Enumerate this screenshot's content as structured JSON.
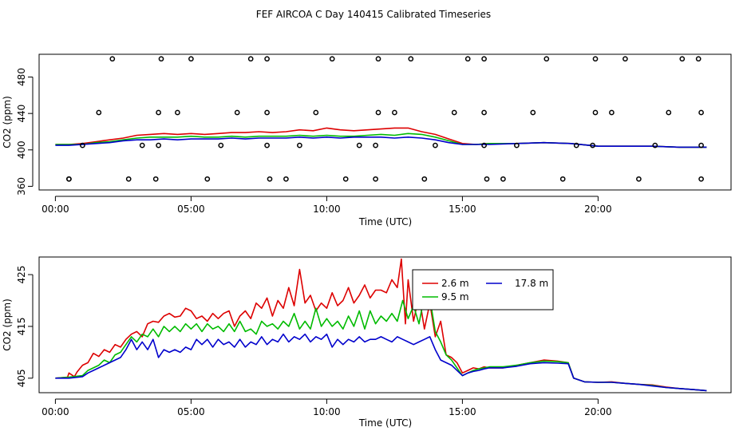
{
  "title": "FEF AIRCOA C  Day 140415  Calibrated Timeseries",
  "colors": {
    "s1": "#dd0000",
    "s2": "#00bb00",
    "s3": "#0000cc",
    "axis": "#000000",
    "background": "#ffffff"
  },
  "chart_data": [
    {
      "type": "line",
      "xlabel": "Time (UTC)",
      "ylabel": "CO2 (ppm)",
      "x_range_hours": [
        -0.6,
        24.9
      ],
      "ylim": [
        356,
        505
      ],
      "xticks": [
        {
          "v": 0,
          "label": "00:00"
        },
        {
          "v": 5,
          "label": "05:00"
        },
        {
          "v": 10,
          "label": "10:00"
        },
        {
          "v": 15,
          "label": "15:00"
        },
        {
          "v": 20,
          "label": "20:00"
        }
      ],
      "yticks": [
        {
          "v": 360,
          "label": "360"
        },
        {
          "v": 400,
          "label": "400"
        },
        {
          "v": 440,
          "label": "440"
        },
        {
          "v": 480,
          "label": "480"
        }
      ],
      "series": [
        {
          "color_key": "s1",
          "x": [
            0,
            0.5,
            1,
            1.5,
            2,
            2.5,
            3,
            3.5,
            4,
            4.5,
            5,
            5.5,
            6,
            6.5,
            7,
            7.5,
            8,
            8.5,
            9,
            9.5,
            10,
            10.5,
            11,
            11.5,
            12,
            12.5,
            13,
            13.5,
            14,
            14.5,
            15,
            15.5,
            16,
            17,
            18,
            19,
            20,
            21,
            22,
            23,
            24
          ],
          "y": [
            406,
            406,
            407,
            409,
            411,
            413,
            416,
            417,
            418,
            417,
            418,
            417,
            418,
            419,
            419,
            420,
            419,
            420,
            422,
            421,
            424,
            422,
            421,
            422,
            423,
            424,
            424,
            420,
            417,
            412,
            407,
            406,
            407,
            407,
            408,
            407,
            404,
            404,
            404,
            403,
            403
          ]
        },
        {
          "color_key": "s2",
          "x": [
            0,
            0.5,
            1,
            1.5,
            2,
            2.5,
            3,
            3.5,
            4,
            4.5,
            5,
            5.5,
            6,
            6.5,
            7,
            7.5,
            8,
            8.5,
            9,
            9.5,
            10,
            10.5,
            11,
            11.5,
            12,
            12.5,
            13,
            13.5,
            14,
            14.5,
            15,
            15.5,
            16,
            17,
            18,
            19,
            20,
            21,
            22,
            23,
            24
          ],
          "y": [
            406,
            406,
            406,
            408,
            409,
            411,
            413,
            414,
            414,
            414,
            415,
            414,
            414,
            415,
            414,
            415,
            415,
            415,
            416,
            415,
            416,
            415,
            415,
            416,
            417,
            416,
            418,
            417,
            414,
            410,
            406,
            406,
            407,
            407,
            408,
            407,
            404,
            404,
            404,
            403,
            403
          ]
        },
        {
          "color_key": "s3",
          "x": [
            0,
            0.5,
            1,
            1.5,
            2,
            2.5,
            3,
            3.5,
            4,
            4.5,
            5,
            5.5,
            6,
            6.5,
            7,
            7.5,
            8,
            8.5,
            9,
            9.5,
            10,
            10.5,
            11,
            11.5,
            12,
            12.5,
            13,
            13.5,
            14,
            14.5,
            15,
            15.5,
            16,
            17,
            18,
            19,
            20,
            21,
            22,
            23,
            24
          ],
          "y": [
            405,
            405,
            406,
            407,
            408,
            410,
            411,
            411,
            412,
            411,
            412,
            412,
            412,
            413,
            412,
            413,
            413,
            413,
            414,
            413,
            414,
            413,
            414,
            414,
            414,
            413,
            414,
            413,
            411,
            408,
            406,
            406,
            406,
            407,
            408,
            407,
            404,
            404,
            404,
            403,
            403
          ]
        }
      ],
      "points": {
        "x": [
          0.5,
          2.1,
          3.9,
          5.0,
          7.2,
          7.8,
          10.2,
          11.9,
          13.1,
          15.2,
          15.8,
          18.1,
          19.9,
          21.0,
          23.1,
          23.7,
          1.6,
          3.8,
          4.5,
          6.7,
          7.8,
          9.6,
          11.9,
          12.5,
          14.7,
          15.8,
          17.6,
          19.9,
          20.5,
          22.6,
          23.8,
          1.0,
          3.2,
          3.8,
          6.1,
          7.8,
          9.0,
          11.2,
          11.8,
          14.0,
          15.8,
          17.0,
          19.2,
          19.8,
          22.1,
          23.8,
          0.5,
          2.7,
          3.7,
          5.6,
          7.9,
          8.5,
          10.7,
          11.8,
          13.6,
          15.9,
          16.5,
          18.7,
          21.5,
          23.8
        ],
        "y": [
          368,
          500,
          500,
          500,
          500,
          500,
          500,
          500,
          500,
          500,
          500,
          500,
          500,
          500,
          500,
          500,
          441,
          441,
          441,
          441,
          441,
          441,
          441,
          441,
          441,
          441,
          441,
          441,
          441,
          441,
          441,
          405,
          405,
          405,
          405,
          405,
          405,
          405,
          405,
          405,
          405,
          405,
          405,
          405,
          405,
          405,
          368,
          368,
          368,
          368,
          368,
          368,
          368,
          368,
          368,
          368,
          368,
          368,
          368,
          368
        ]
      }
    },
    {
      "type": "line",
      "xlabel": "Time (UTC)",
      "ylabel": "CO2 (ppm)",
      "x_range_hours": [
        -0.6,
        24.9
      ],
      "ylim": [
        402.2,
        428.4
      ],
      "xticks": [
        {
          "v": 0,
          "label": "00:00"
        },
        {
          "v": 5,
          "label": "05:00"
        },
        {
          "v": 10,
          "label": "10:00"
        },
        {
          "v": 15,
          "label": "15:00"
        },
        {
          "v": 20,
          "label": "20:00"
        }
      ],
      "yticks": [
        {
          "v": 405,
          "label": "405"
        },
        {
          "v": 415,
          "label": "415"
        },
        {
          "v": 425,
          "label": "425"
        }
      ],
      "legend": {
        "placement": "top-right",
        "entries": [
          {
            "label": "2.6 m",
            "color_key": "s1"
          },
          {
            "label": "17.8 m",
            "color_key": "s3"
          },
          {
            "label": "9.5 m",
            "color_key": "s2"
          }
        ]
      },
      "series": [
        {
          "name": "2.6 m",
          "color_key": "s1",
          "x": [
            0.0,
            0.45,
            0.5,
            0.7,
            0.8,
            1.0,
            1.2,
            1.4,
            1.6,
            1.8,
            2.0,
            2.2,
            2.4,
            2.6,
            2.8,
            3.0,
            3.2,
            3.4,
            3.6,
            3.8,
            4.0,
            4.2,
            4.4,
            4.6,
            4.8,
            5.0,
            5.2,
            5.4,
            5.6,
            5.8,
            6.0,
            6.2,
            6.4,
            6.6,
            6.8,
            7.0,
            7.2,
            7.4,
            7.6,
            7.8,
            8.0,
            8.2,
            8.4,
            8.6,
            8.8,
            9.0,
            9.2,
            9.4,
            9.6,
            9.8,
            10.0,
            10.2,
            10.4,
            10.6,
            10.8,
            11.0,
            11.2,
            11.4,
            11.6,
            11.8,
            12.0,
            12.2,
            12.4,
            12.6,
            12.75,
            12.9,
            13.0,
            13.2,
            13.4,
            13.6,
            13.8,
            14.0,
            14.2,
            14.4,
            14.6,
            14.8,
            15.0,
            15.2,
            15.4,
            15.6,
            15.8,
            16.0,
            16.5,
            17.0,
            17.5,
            18.0,
            18.5,
            18.9,
            19.1,
            19.5,
            20.0,
            20.5,
            21.0,
            21.5,
            22.0,
            22.5,
            23.0,
            23.5,
            24.0
          ],
          "y": [
            405.0,
            405.2,
            406.0,
            405.3,
            406.2,
            407.5,
            408.0,
            409.8,
            409.2,
            410.5,
            410.0,
            411.5,
            411.0,
            412.5,
            413.5,
            414.0,
            413.0,
            415.5,
            416.0,
            415.8,
            417.0,
            417.5,
            416.8,
            417.0,
            418.5,
            418.0,
            416.5,
            417.0,
            416.0,
            417.5,
            416.5,
            417.5,
            418.0,
            415.0,
            417.0,
            418.0,
            416.5,
            419.5,
            418.5,
            420.5,
            417.0,
            420.0,
            418.5,
            422.5,
            419.0,
            426.0,
            419.5,
            421.0,
            418.0,
            419.5,
            418.5,
            421.5,
            419.0,
            420.0,
            422.5,
            419.5,
            421.0,
            423.0,
            420.5,
            422.0,
            422.0,
            421.5,
            424.0,
            422.5,
            428.0,
            415.5,
            424.0,
            416.0,
            421.0,
            414.5,
            419.5,
            413.0,
            416.0,
            409.5,
            409.0,
            408.0,
            406.0,
            406.5,
            407.0,
            406.8,
            407.2,
            407.0,
            407.0,
            407.5,
            408.0,
            408.5,
            408.3,
            408.0,
            405.0,
            404.3,
            404.2,
            404.3,
            404.0,
            403.8,
            403.7,
            403.3,
            403.0,
            402.8,
            402.6
          ]
        },
        {
          "name": "9.5 m",
          "color_key": "s2",
          "x": [
            0.0,
            0.5,
            1.0,
            1.2,
            1.4,
            1.6,
            1.8,
            2.0,
            2.2,
            2.4,
            2.6,
            2.8,
            3.0,
            3.2,
            3.4,
            3.6,
            3.8,
            4.0,
            4.2,
            4.4,
            4.6,
            4.8,
            5.0,
            5.2,
            5.4,
            5.6,
            5.8,
            6.0,
            6.2,
            6.4,
            6.6,
            6.8,
            7.0,
            7.2,
            7.4,
            7.6,
            7.8,
            8.0,
            8.2,
            8.4,
            8.6,
            8.8,
            9.0,
            9.2,
            9.4,
            9.6,
            9.8,
            10.0,
            10.2,
            10.4,
            10.6,
            10.8,
            11.0,
            11.2,
            11.4,
            11.6,
            11.8,
            12.0,
            12.2,
            12.4,
            12.6,
            12.8,
            13.0,
            13.2,
            13.4,
            13.6,
            13.8,
            14.0,
            14.2,
            14.4,
            14.6,
            14.8,
            15.0,
            15.2,
            15.4,
            15.6,
            15.8,
            16.0,
            16.5,
            17.0,
            17.5,
            18.0,
            18.5,
            18.9,
            19.1,
            19.5,
            20.0,
            20.5,
            21.0,
            21.5,
            22.0,
            22.5,
            23.0,
            23.5,
            24.0
          ],
          "y": [
            405.0,
            405.2,
            405.5,
            406.5,
            407.0,
            407.5,
            408.5,
            408.0,
            409.5,
            410.0,
            411.5,
            413.0,
            412.0,
            413.5,
            413.0,
            414.5,
            413.0,
            415.0,
            414.0,
            415.0,
            414.0,
            415.5,
            414.5,
            415.5,
            414.0,
            415.5,
            414.5,
            415.0,
            414.0,
            415.5,
            414.0,
            416.0,
            414.0,
            414.5,
            413.5,
            416.0,
            415.0,
            415.5,
            414.5,
            416.0,
            415.0,
            417.5,
            414.5,
            416.0,
            414.5,
            418.5,
            415.0,
            416.5,
            415.0,
            416.0,
            414.5,
            417.0,
            415.0,
            418.0,
            414.5,
            418.0,
            415.5,
            417.0,
            416.0,
            417.5,
            416.0,
            420.0,
            416.5,
            419.0,
            415.5,
            421.0,
            420.5,
            414.0,
            412.0,
            409.5,
            408.5,
            407.0,
            405.5,
            406.0,
            406.5,
            406.8,
            407.0,
            407.2,
            407.2,
            407.5,
            408.0,
            408.3,
            408.2,
            408.0,
            405.0,
            404.3,
            404.2,
            404.2,
            404.0,
            403.8,
            403.6,
            403.2,
            403.0,
            402.8,
            402.6
          ]
        },
        {
          "name": "17.8 m",
          "color_key": "s3",
          "x": [
            0.0,
            0.5,
            1.0,
            1.2,
            1.4,
            1.6,
            1.8,
            2.0,
            2.2,
            2.4,
            2.6,
            2.8,
            3.0,
            3.2,
            3.4,
            3.6,
            3.8,
            4.0,
            4.2,
            4.4,
            4.6,
            4.8,
            5.0,
            5.2,
            5.4,
            5.6,
            5.8,
            6.0,
            6.2,
            6.4,
            6.6,
            6.8,
            7.0,
            7.2,
            7.4,
            7.6,
            7.8,
            8.0,
            8.2,
            8.4,
            8.6,
            8.8,
            9.0,
            9.2,
            9.4,
            9.6,
            9.8,
            10.0,
            10.2,
            10.4,
            10.6,
            10.8,
            11.0,
            11.2,
            11.4,
            11.6,
            11.8,
            12.0,
            12.2,
            12.4,
            12.6,
            12.8,
            13.0,
            13.2,
            13.4,
            13.6,
            13.8,
            14.0,
            14.2,
            14.4,
            14.6,
            14.8,
            15.0,
            15.2,
            15.4,
            15.6,
            15.8,
            16.0,
            16.5,
            17.0,
            17.5,
            18.0,
            18.5,
            18.9,
            19.1,
            19.5,
            20.0,
            20.5,
            21.0,
            21.5,
            22.0,
            22.5,
            23.0,
            23.5,
            24.0
          ],
          "y": [
            405.0,
            405.0,
            405.3,
            406.0,
            406.5,
            407.0,
            407.5,
            408.0,
            408.5,
            409.0,
            410.5,
            412.5,
            410.5,
            412.0,
            410.5,
            412.5,
            409.0,
            410.5,
            410.0,
            410.5,
            410.0,
            411.0,
            410.5,
            412.5,
            411.5,
            412.5,
            411.0,
            412.5,
            411.5,
            412.0,
            411.0,
            412.5,
            411.0,
            412.0,
            411.5,
            413.0,
            411.5,
            412.5,
            412.0,
            413.5,
            412.0,
            413.0,
            412.5,
            413.5,
            412.0,
            413.0,
            412.5,
            413.5,
            411.0,
            412.5,
            411.5,
            412.5,
            412.0,
            413.0,
            412.0,
            412.5,
            412.5,
            413.0,
            412.5,
            412.0,
            413.0,
            412.5,
            412.0,
            411.5,
            412.0,
            412.5,
            413.0,
            410.5,
            408.5,
            408.0,
            407.5,
            406.5,
            405.5,
            406.0,
            406.3,
            406.5,
            406.8,
            407.0,
            407.0,
            407.3,
            407.8,
            408.0,
            407.9,
            407.8,
            405.0,
            404.3,
            404.2,
            404.2,
            404.0,
            403.8,
            403.5,
            403.2,
            403.0,
            402.8,
            402.6
          ]
        }
      ]
    }
  ]
}
